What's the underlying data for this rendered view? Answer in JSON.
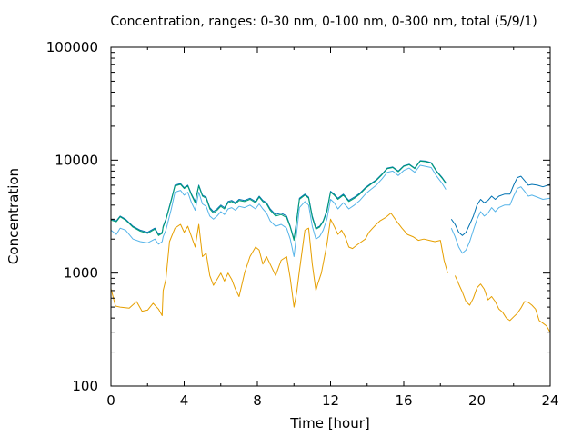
{
  "chart_data": {
    "type": "line",
    "title": "Concentration, ranges: 0-30 nm, 0-100 nm, 0-300 nm, total (5/9/1)",
    "xlabel": "Time [hour]",
    "ylabel": "Concentration",
    "xlim": [
      0,
      24
    ],
    "ylim": [
      100,
      100000
    ],
    "yscale": "log",
    "grid": false,
    "x_ticks": [
      0,
      4,
      8,
      12,
      16,
      20,
      24
    ],
    "x_tick_labels": [
      "0",
      "4",
      "8",
      "12",
      "16",
      "20",
      "24"
    ],
    "y_ticks": [
      100,
      1000,
      10000,
      100000
    ],
    "y_tick_labels": [
      "100",
      "1000",
      "10000",
      "100000"
    ],
    "series": [
      {
        "color": "#e69f00",
        "x": [
          0,
          0.25,
          0.5,
          1,
          1.4,
          1.7,
          2,
          2.3,
          2.6,
          2.8,
          2.85,
          3,
          3.2,
          3.5,
          3.8,
          4.0,
          4.2,
          4.4,
          4.6,
          4.8,
          5.0,
          5.2,
          5.4,
          5.6,
          5.8,
          6.0,
          6.2,
          6.4,
          6.6,
          6.8,
          7.0,
          7.3,
          7.6,
          7.9,
          8.1,
          8.3,
          8.5,
          8.7,
          9.0,
          9.3,
          9.6,
          9.8,
          10.0,
          10.15,
          10.3,
          10.6,
          10.8,
          11.0,
          11.2,
          11.3,
          11.5,
          11.8,
          12.0,
          12.2,
          12.4,
          12.6,
          12.8,
          13.0,
          13.2,
          13.5,
          13.7,
          13.9,
          14.1,
          14.3,
          14.5,
          14.7,
          15.0,
          15.3,
          15.6,
          15.9,
          16.2,
          16.5,
          16.8,
          17.1,
          17.4,
          17.7,
          18.0,
          18.2,
          18.4
        ],
        "values": [
          730,
          510,
          500,
          490,
          560,
          460,
          470,
          540,
          480,
          420,
          700,
          880,
          1900,
          2500,
          2700,
          2300,
          2600,
          2100,
          1700,
          2700,
          1400,
          1500,
          950,
          780,
          880,
          1000,
          850,
          1000,
          880,
          720,
          620,
          1000,
          1400,
          1700,
          1600,
          1200,
          1400,
          1200,
          950,
          1300,
          1400,
          900,
          500,
          680,
          1050,
          2400,
          2500,
          1200,
          700,
          800,
          1000,
          1800,
          3000,
          2600,
          2200,
          2400,
          2100,
          1700,
          1650,
          1800,
          1900,
          2000,
          2300,
          2500,
          2700,
          2900,
          3100,
          3400,
          2900,
          2500,
          2200,
          2100,
          1950,
          2000,
          1950,
          1900,
          1950,
          1300,
          1000
        ]
      },
      {
        "color": "#e69f00",
        "x": [
          18.8,
          19.0,
          19.2,
          19.4,
          19.6,
          19.8,
          20.0,
          20.2,
          20.4,
          20.6,
          20.8,
          21.0,
          21.2,
          21.4,
          21.6,
          21.8,
          22.0,
          22.2,
          22.4,
          22.6,
          22.8,
          23.0,
          23.2,
          23.4,
          23.6,
          23.8,
          24.0
        ],
        "values": [
          950,
          800,
          680,
          560,
          520,
          600,
          740,
          800,
          720,
          580,
          620,
          560,
          480,
          450,
          400,
          380,
          410,
          440,
          490,
          560,
          550,
          520,
          480,
          380,
          360,
          340,
          300
        ]
      },
      {
        "color": "#0072b2",
        "x": [
          0,
          0.3,
          0.5,
          0.8,
          1.2,
          1.6,
          2.0,
          2.4,
          2.6,
          2.8,
          2.85,
          3.0,
          3.3,
          3.5,
          3.8,
          4.0,
          4.2,
          4.4,
          4.6,
          4.8,
          5.0,
          5.2,
          5.4,
          5.6,
          5.8,
          6.0,
          6.2,
          6.4,
          6.6,
          6.8,
          7.0,
          7.3,
          7.6,
          7.9,
          8.1,
          8.3,
          8.5,
          8.7,
          9.0,
          9.3,
          9.6,
          9.8,
          10.0,
          10.15,
          10.3,
          10.6,
          10.8,
          11.0,
          11.2,
          11.4,
          11.6,
          11.8,
          12.0,
          12.2,
          12.4,
          12.7,
          13.0,
          13.3,
          13.6,
          13.9,
          14.2,
          14.5,
          14.8,
          15.1,
          15.4,
          15.7,
          16.0,
          16.3,
          16.6,
          16.9,
          17.2,
          17.5,
          17.8,
          18.1,
          18.3
        ],
        "values": [
          3000,
          2900,
          3200,
          3000,
          2600,
          2400,
          2300,
          2500,
          2200,
          2300,
          2600,
          3000,
          4500,
          6000,
          6200,
          5700,
          6000,
          5000,
          4300,
          6000,
          4900,
          4700,
          3800,
          3500,
          3700,
          4000,
          3800,
          4300,
          4400,
          4200,
          4500,
          4400,
          4600,
          4300,
          4800,
          4400,
          4200,
          3700,
          3300,
          3400,
          3200,
          2600,
          2000,
          3000,
          4600,
          5000,
          4700,
          3200,
          2500,
          2600,
          2900,
          3600,
          5300,
          5000,
          4600,
          5000,
          4400,
          4700,
          5100,
          5700,
          6200,
          6700,
          7500,
          8500,
          8700,
          8000,
          8900,
          9200,
          8500,
          9900,
          9800,
          9500,
          8000,
          7000,
          6300
        ]
      },
      {
        "color": "#0072b2",
        "x": [
          18.6,
          18.8,
          19.0,
          19.2,
          19.4,
          19.6,
          19.8,
          20.0,
          20.2,
          20.4,
          20.6,
          20.8,
          21.0,
          21.2,
          21.5,
          21.8,
          22.0,
          22.2,
          22.4,
          22.6,
          22.8,
          23.0,
          23.3,
          23.6,
          24.0
        ],
        "values": [
          3000,
          2700,
          2300,
          2150,
          2300,
          2700,
          3200,
          4000,
          4500,
          4200,
          4400,
          4800,
          4500,
          4800,
          5000,
          5000,
          6000,
          7000,
          7200,
          6600,
          6000,
          6100,
          6000,
          5800,
          6100
        ]
      },
      {
        "color": "#009e73",
        "x": [
          0,
          0.3,
          0.5,
          0.8,
          1.2,
          1.6,
          2.0,
          2.4,
          2.6,
          2.8,
          2.85,
          3.0,
          3.3,
          3.5,
          3.8,
          4.0,
          4.2,
          4.4,
          4.6,
          4.8,
          5.0,
          5.2,
          5.4,
          5.6,
          5.8,
          6.0,
          6.2,
          6.4,
          6.6,
          6.8,
          7.0,
          7.3,
          7.6,
          7.9,
          8.1,
          8.3,
          8.5,
          8.7,
          9.0,
          9.3,
          9.6,
          9.8,
          10.0,
          10.15,
          10.3,
          10.6,
          10.8,
          11.0,
          11.2,
          11.4,
          11.6,
          11.8,
          12.0,
          12.2,
          12.4,
          12.7,
          13.0,
          13.3,
          13.6,
          13.9,
          14.2,
          14.5,
          14.8,
          15.1,
          15.4,
          15.7,
          16.0,
          16.3,
          16.6,
          16.9,
          17.2,
          17.5,
          17.8,
          18.1,
          18.3
        ],
        "values": [
          2950,
          2850,
          3150,
          2950,
          2550,
          2350,
          2250,
          2450,
          2150,
          2250,
          2550,
          2950,
          4400,
          5900,
          6100,
          5600,
          5900,
          4900,
          4200,
          5900,
          4800,
          4600,
          3700,
          3400,
          3600,
          3900,
          3700,
          4200,
          4300,
          4100,
          4400,
          4300,
          4500,
          4200,
          4700,
          4300,
          4100,
          3600,
          3200,
          3300,
          3100,
          2550,
          1950,
          2900,
          4500,
          4900,
          4600,
          3100,
          2450,
          2550,
          2850,
          3500,
          5200,
          4900,
          4500,
          4900,
          4300,
          4600,
          5000,
          5600,
          6100,
          6600,
          7400,
          8400,
          8600,
          7900,
          8800,
          9100,
          8400,
          9800,
          9700,
          9400,
          7900,
          6900,
          6200
        ]
      },
      {
        "color": "#56b4e9",
        "x": [
          0,
          0.3,
          0.5,
          0.8,
          1.2,
          1.6,
          2.0,
          2.4,
          2.6,
          2.8,
          2.85,
          3.0,
          3.3,
          3.5,
          3.8,
          4.0,
          4.2,
          4.4,
          4.6,
          4.8,
          5.0,
          5.2,
          5.4,
          5.6,
          5.8,
          6.0,
          6.2,
          6.4,
          6.6,
          6.8,
          7.0,
          7.3,
          7.6,
          7.9,
          8.1,
          8.3,
          8.5,
          8.7,
          9.0,
          9.3,
          9.6,
          9.8,
          10.0,
          10.15,
          10.3,
          10.6,
          10.8,
          11.0,
          11.2,
          11.4,
          11.6,
          11.8,
          12.0,
          12.2,
          12.4,
          12.7,
          13.0,
          13.3,
          13.6,
          13.9,
          14.2,
          14.5,
          14.8,
          15.1,
          15.4,
          15.7,
          16.0,
          16.3,
          16.6,
          16.9,
          17.2,
          17.5,
          17.8,
          18.1,
          18.3
        ],
        "values": [
          2400,
          2200,
          2500,
          2400,
          2000,
          1900,
          1850,
          2000,
          1800,
          1900,
          2100,
          2400,
          3700,
          5200,
          5400,
          4900,
          5200,
          4200,
          3600,
          5200,
          4100,
          3900,
          3200,
          3000,
          3200,
          3500,
          3300,
          3700,
          3800,
          3600,
          3900,
          3800,
          4000,
          3700,
          4100,
          3700,
          3400,
          2900,
          2600,
          2700,
          2500,
          2000,
          1400,
          2300,
          3800,
          4300,
          4000,
          2600,
          2000,
          2100,
          2400,
          3000,
          4500,
          4200,
          3700,
          4200,
          3700,
          4000,
          4400,
          5000,
          5500,
          6000,
          6800,
          7800,
          8000,
          7300,
          8100,
          8500,
          7800,
          9000,
          8800,
          8600,
          7200,
          6200,
          5500
        ]
      },
      {
        "color": "#56b4e9",
        "x": [
          18.6,
          18.8,
          19.0,
          19.2,
          19.4,
          19.6,
          19.8,
          20.0,
          20.2,
          20.4,
          20.6,
          20.8,
          21.0,
          21.2,
          21.5,
          21.8,
          22.0,
          22.2,
          22.4,
          22.6,
          22.8,
          23.0,
          23.3,
          23.6,
          24.0
        ],
        "values": [
          2500,
          2100,
          1700,
          1500,
          1600,
          1900,
          2400,
          3000,
          3500,
          3200,
          3400,
          3800,
          3500,
          3800,
          4000,
          4000,
          4800,
          5600,
          5800,
          5300,
          4800,
          4900,
          4700,
          4500,
          4600
        ]
      }
    ]
  }
}
